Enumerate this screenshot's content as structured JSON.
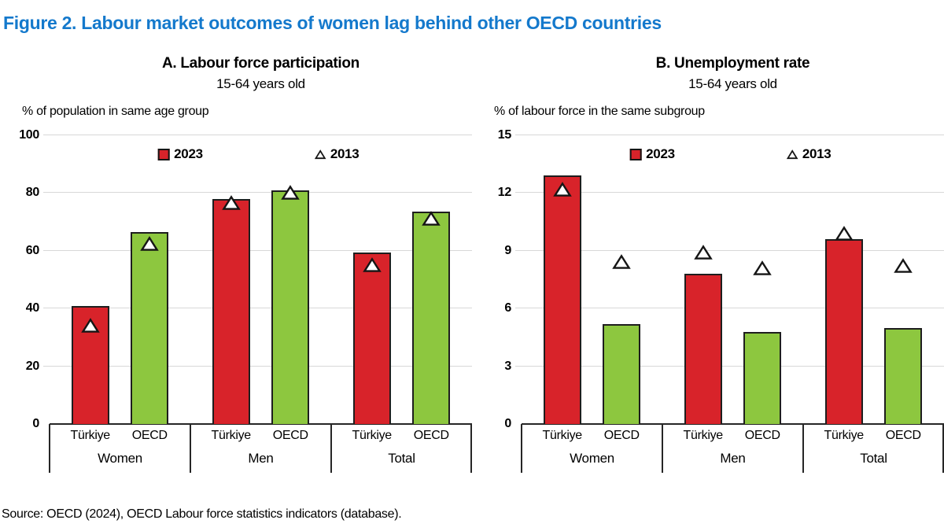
{
  "figure": {
    "title": "Figure 2. Labour market outcomes of women lag behind other OECD countries"
  },
  "source": "Source: OECD (2024), OECD Labour force statistics indicators (database).",
  "colors": {
    "title_blue": "#1479CC",
    "bar_red": "#D8232A",
    "bar_green": "#8DC73F",
    "gridline_gray": "#D8D8D8",
    "axis_black": "#262626"
  },
  "chart_data": [
    {
      "type": "bar",
      "panel": "A",
      "title": "A. Labour force participation",
      "subtitle": "15-64 years old",
      "ylabel": "% of population in same age group",
      "ylim": [
        0,
        100
      ],
      "yticks": [
        0,
        20,
        40,
        60,
        80,
        100
      ],
      "grid": true,
      "legend": [
        {
          "label": "2023",
          "marker": "square",
          "color": "#D8232A"
        },
        {
          "label": "2013",
          "marker": "triangle",
          "color": "#FFFFFF"
        }
      ],
      "categories": [
        "Türkiye",
        "OECD"
      ],
      "groups": [
        {
          "label": "Women",
          "bars": [
            {
              "category": "Türkiye",
              "color": "#D8232A",
              "v2023": 41.0,
              "v2013": 34.0
            },
            {
              "category": "OECD",
              "color": "#8DC73F",
              "v2023": 66.5,
              "v2013": 62.5
            }
          ]
        },
        {
          "label": "Men",
          "bars": [
            {
              "category": "Türkiye",
              "color": "#D8232A",
              "v2023": 78.0,
              "v2013": 76.5
            },
            {
              "category": "OECD",
              "color": "#8DC73F",
              "v2023": 81.0,
              "v2013": 80.0
            }
          ]
        },
        {
          "label": "Total",
          "bars": [
            {
              "category": "Türkiye",
              "color": "#D8232A",
              "v2023": 59.5,
              "v2013": 55.0
            },
            {
              "category": "OECD",
              "color": "#8DC73F",
              "v2023": 73.5,
              "v2013": 71.0
            }
          ]
        }
      ]
    },
    {
      "type": "bar",
      "panel": "B",
      "title": "B. Unemployment rate",
      "subtitle": "15-64 years old",
      "ylabel": "% of labour force in the same subgroup",
      "ylim": [
        0,
        15
      ],
      "yticks": [
        0,
        3,
        6,
        9,
        12,
        15
      ],
      "grid": true,
      "legend": [
        {
          "label": "2023",
          "marker": "square",
          "color": "#D8232A"
        },
        {
          "label": "2013",
          "marker": "triangle",
          "color": "#FFFFFF"
        }
      ],
      "categories": [
        "Türkiye",
        "OECD"
      ],
      "groups": [
        {
          "label": "Women",
          "bars": [
            {
              "category": "Türkiye",
              "color": "#D8232A",
              "v2023": 12.9,
              "v2013": 12.2
            },
            {
              "category": "OECD",
              "color": "#8DC73F",
              "v2023": 5.2,
              "v2013": 8.4
            }
          ]
        },
        {
          "label": "Men",
          "bars": [
            {
              "category": "Türkiye",
              "color": "#D8232A",
              "v2023": 7.8,
              "v2013": 8.9
            },
            {
              "category": "OECD",
              "color": "#8DC73F",
              "v2023": 4.8,
              "v2013": 8.1
            }
          ]
        },
        {
          "label": "Total",
          "bars": [
            {
              "category": "Türkiye",
              "color": "#D8232A",
              "v2023": 9.6,
              "v2013": 9.9
            },
            {
              "category": "OECD",
              "color": "#8DC73F",
              "v2023": 5.0,
              "v2013": 8.2
            }
          ]
        }
      ]
    }
  ]
}
